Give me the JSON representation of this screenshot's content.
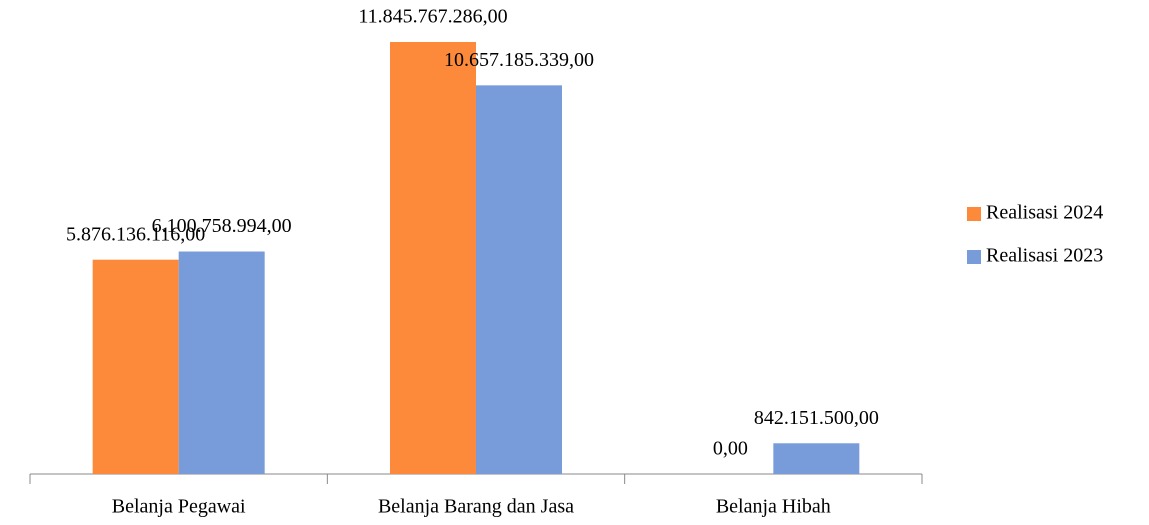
{
  "chart_data": {
    "type": "bar",
    "categories": [
      "Belanja Pegawai",
      "Belanja Barang dan Jasa",
      "Belanja Hibah"
    ],
    "series": [
      {
        "name": "Realisasi 2024",
        "color": "#fd8a3b",
        "values": [
          5876136116,
          11845767286,
          0
        ],
        "value_labels": [
          "5.876.136.116,00",
          "11.845.767.286,00",
          "0,00"
        ]
      },
      {
        "name": "Realisasi 2023",
        "color": "#789bd9",
        "values": [
          6100758994,
          10657185339,
          842151500
        ],
        "value_labels": [
          "6.100.758.994,00",
          "10.657.185.339,00",
          "842.151.500,00"
        ]
      }
    ],
    "legend": "right"
  }
}
